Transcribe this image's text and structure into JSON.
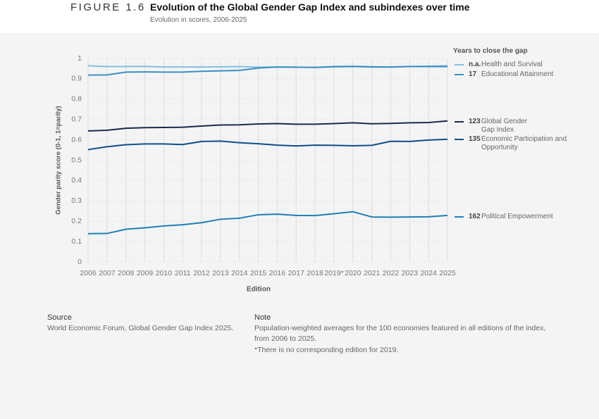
{
  "header": {
    "figure": "FIGURE 1.6",
    "title": "Evolution of the Global Gender Gap Index and subindexes over time",
    "subtitle": "Evolution in scores, 2006-2025"
  },
  "chart_data": {
    "type": "line",
    "y_label": "Gender parity score (0-1, 1=parity)",
    "x_label": "Edition",
    "legend_title": "Years to close the gap",
    "categories": [
      "2006",
      "2007",
      "2008",
      "2009",
      "2010",
      "2011",
      "2012",
      "2013",
      "2014",
      "2015",
      "2016",
      "2017",
      "2018",
      "2019*",
      "2020",
      "2021",
      "2022",
      "2023",
      "2024",
      "2025"
    ],
    "ylim": [
      0,
      1
    ],
    "yticks": [
      0,
      0.1,
      0.2,
      0.3,
      0.4,
      0.5,
      0.6,
      0.7,
      0.8,
      0.9,
      1
    ],
    "grid": true,
    "series": [
      {
        "name": "Health and Survival",
        "gap_years": "n.a.",
        "color": "#86bde0",
        "values": [
          0.964,
          0.96,
          0.96,
          0.961,
          0.958,
          0.958,
          0.958,
          0.959,
          0.96,
          0.957,
          0.958,
          0.957,
          0.956,
          0.958,
          0.96,
          0.957,
          0.957,
          0.961,
          0.962,
          0.964
        ]
      },
      {
        "name": "Educational Attainment",
        "gap_years": "17",
        "color": "#3a8fc4",
        "values": [
          0.918,
          0.919,
          0.933,
          0.934,
          0.933,
          0.933,
          0.937,
          0.939,
          0.941,
          0.953,
          0.958,
          0.957,
          0.956,
          0.96,
          0.961,
          0.959,
          0.958,
          0.96,
          0.96,
          0.96
        ]
      },
      {
        "name": "Global Gender Gap Index",
        "gap_years": "123",
        "color": "#1a2a4a",
        "values": [
          0.644,
          0.647,
          0.657,
          0.66,
          0.661,
          0.662,
          0.668,
          0.673,
          0.674,
          0.678,
          0.68,
          0.677,
          0.677,
          0.68,
          0.684,
          0.679,
          0.681,
          0.684,
          0.685,
          0.693
        ]
      },
      {
        "name": "Economic Participation and Opportunity",
        "gap_years": "135",
        "color": "#0d4f8a",
        "values": [
          0.552,
          0.566,
          0.576,
          0.58,
          0.58,
          0.577,
          0.592,
          0.594,
          0.586,
          0.581,
          0.574,
          0.57,
          0.574,
          0.573,
          0.571,
          0.573,
          0.593,
          0.592,
          0.599,
          0.603
        ]
      },
      {
        "name": "Political Empowerment",
        "gap_years": "162",
        "color": "#1f7fb5",
        "values": [
          0.139,
          0.14,
          0.161,
          0.168,
          0.177,
          0.183,
          0.193,
          0.21,
          0.215,
          0.232,
          0.235,
          0.229,
          0.228,
          0.237,
          0.247,
          0.221,
          0.22,
          0.221,
          0.222,
          0.229
        ]
      }
    ]
  },
  "footer": {
    "source_label": "Source",
    "source": "World Economic Forum, Global Gender Gap Index 2025.",
    "note_label": "Note",
    "note": "Population-weighted averages for the 100 economies featured in all editions of the index, from 2006 to 2025.",
    "note_extra": "*There is no corresponding edition for 2019."
  }
}
